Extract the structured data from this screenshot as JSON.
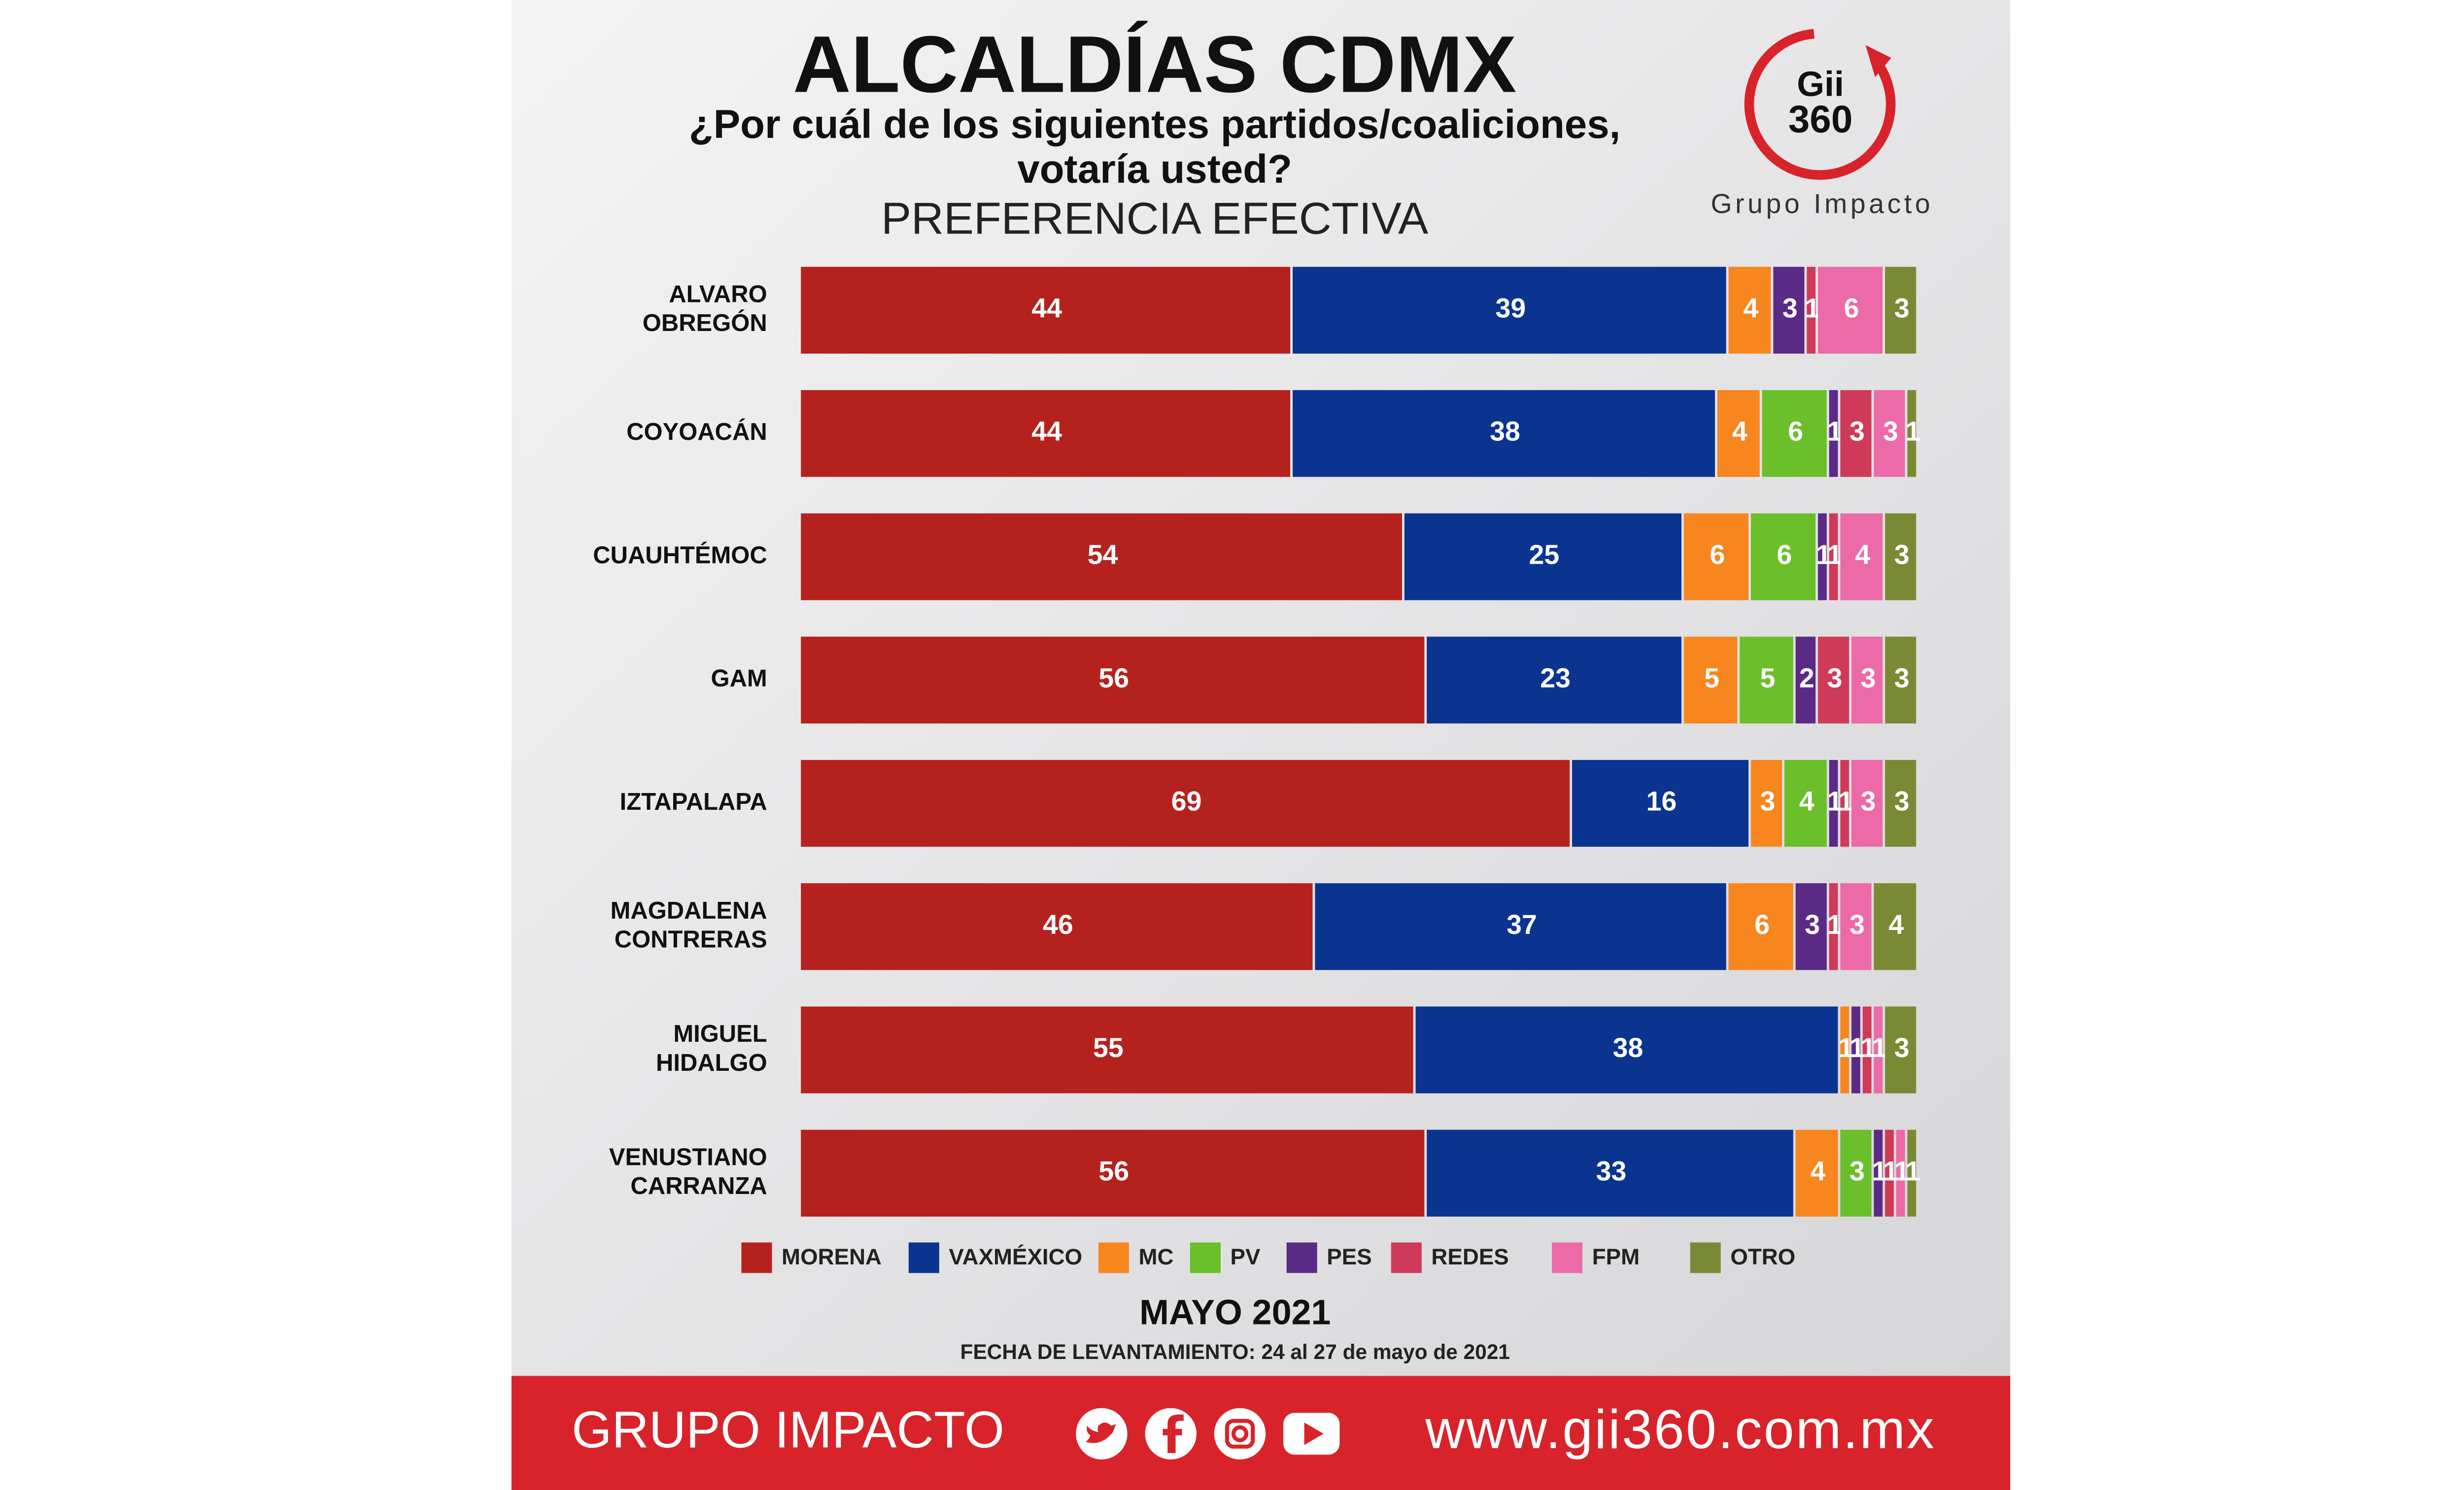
{
  "chart_data": {
    "type": "stacked-bar-horizontal",
    "title": "ALCALDÍAS CDMX",
    "subtitle": "¿Por cuál de los siguientes partidos/coaliciones, votaría usted?",
    "measure": "PREFERENCIA EFECTIVA",
    "period": "MAYO 2021",
    "note": "FECHA DE LEVANTAMIENTO: 24 al 27 de mayo de 2021",
    "categories": [
      "ALVARO OBREGÓN",
      "COYOACÁN",
      "CUAUHTÉMOC",
      "GAM",
      "IZTAPALAPA",
      "MAGDALENA CONTRERAS",
      "MIGUEL HIDALGO",
      "VENUSTIANO CARRANZA"
    ],
    "series": [
      {
        "name": "MORENA",
        "color": "#b5221e",
        "values": [
          44,
          44,
          54,
          56,
          69,
          46,
          55,
          56
        ]
      },
      {
        "name": "VAXMÉXICO",
        "color": "#0a3490",
        "values": [
          39,
          38,
          25,
          23,
          16,
          37,
          38,
          33
        ]
      },
      {
        "name": "MC",
        "color": "#f7861f",
        "values": [
          4,
          4,
          6,
          5,
          3,
          6,
          1,
          4
        ]
      },
      {
        "name": "PV",
        "color": "#6abf2a",
        "values": [
          null,
          6,
          6,
          5,
          4,
          null,
          null,
          3
        ]
      },
      {
        "name": "PES",
        "color": "#5b2a86",
        "values": [
          3,
          1,
          1,
          2,
          1,
          3,
          1,
          1
        ]
      },
      {
        "name": "REDES",
        "color": "#cf3a58",
        "values": [
          1,
          3,
          1,
          3,
          1,
          1,
          1,
          1
        ]
      },
      {
        "name": "FPM",
        "color": "#ec6aa8",
        "values": [
          6,
          3,
          4,
          3,
          3,
          3,
          1,
          1
        ]
      },
      {
        "name": "OTRO",
        "color": "#7a8a34",
        "values": [
          3,
          1,
          3,
          3,
          3,
          4,
          3,
          1
        ]
      }
    ],
    "legend": "bottom"
  },
  "logo": {
    "top": "Gii",
    "bottom": "360",
    "caption": "Grupo Impacto"
  },
  "footer": {
    "brand": "GRUPO IMPACTO",
    "url": "www.gii360.com.mx"
  }
}
